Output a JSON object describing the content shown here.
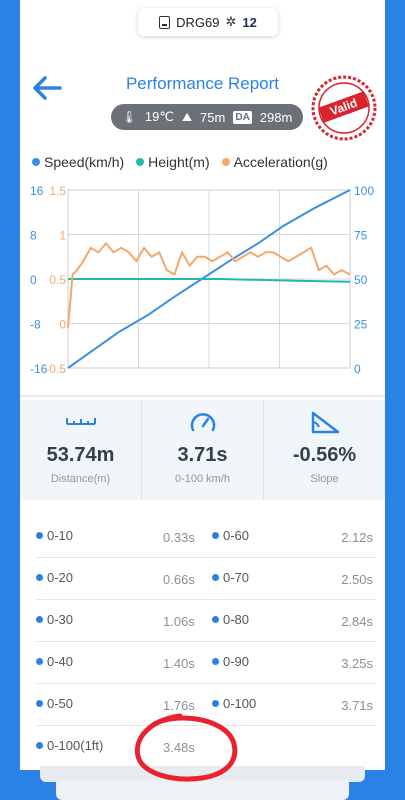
{
  "device": {
    "name": "DRG69",
    "satellites": "12"
  },
  "header": {
    "title": "Performance Report",
    "temperature": "19℃",
    "altitude": "75m",
    "da_label": "DA",
    "density_altitude": "298m",
    "stamp_text": "Valid"
  },
  "colors": {
    "primary": "#2b82e6",
    "speed": "#3b8fe3",
    "height": "#23b7b0",
    "acceleration": "#f5a76a",
    "annotation": "#e8232f"
  },
  "chart_data": {
    "type": "line",
    "series": [
      {
        "name": "Speed(km/h)",
        "axis": "right",
        "x": [
          0,
          0.33,
          0.66,
          1.06,
          1.4,
          1.76,
          2.12,
          2.5,
          2.84,
          3.25,
          3.71
        ],
        "values": [
          0,
          10,
          20,
          30,
          40,
          50,
          60,
          70,
          80,
          90,
          100
        ]
      },
      {
        "name": "Height(m)",
        "axis": "left",
        "x": [
          0,
          0.3,
          1,
          2,
          3,
          3.71
        ],
        "values": [
          0.5,
          0.5,
          0.5,
          0.5,
          0.48,
          0.47
        ]
      },
      {
        "name": "Acceleration(g)",
        "axis": "left-inner",
        "x": [
          0,
          0.06,
          0.12,
          0.2,
          0.3,
          0.4,
          0.5,
          0.6,
          0.7,
          0.8,
          0.9,
          1.0,
          1.1,
          1.2,
          1.3,
          1.4,
          1.5,
          1.6,
          1.7,
          1.8,
          1.9,
          2.0,
          2.1,
          2.2,
          2.3,
          2.4,
          2.5,
          2.6,
          2.7,
          2.8,
          2.9,
          3.0,
          3.1,
          3.2,
          3.3,
          3.4,
          3.5,
          3.6,
          3.71
        ],
        "values": [
          -0.05,
          0.55,
          0.6,
          0.7,
          0.85,
          0.8,
          0.9,
          0.8,
          0.85,
          0.8,
          0.7,
          0.85,
          0.75,
          0.8,
          0.6,
          0.55,
          0.8,
          0.65,
          0.75,
          0.75,
          0.7,
          0.75,
          0.8,
          0.7,
          0.75,
          0.8,
          0.75,
          0.8,
          0.8,
          0.75,
          0.7,
          0.75,
          0.8,
          0.85,
          0.6,
          0.65,
          0.55,
          0.6,
          0.55
        ]
      }
    ],
    "axes": {
      "left": {
        "ticks": [
          "16",
          "8",
          "0",
          "-8",
          "-16"
        ],
        "range": [
          -16,
          16
        ]
      },
      "left_inner": {
        "ticks": [
          "1.5",
          "1",
          "0.5",
          "0",
          "-0.5"
        ],
        "range": [
          -0.5,
          1.5
        ]
      },
      "right": {
        "ticks": [
          "100",
          "75",
          "50",
          "25",
          "0"
        ],
        "range": [
          0,
          100
        ]
      }
    },
    "xlim": [
      0,
      3.71
    ],
    "grid": true
  },
  "stats": [
    {
      "value": "53.74m",
      "label": "Distance(m)",
      "icon": "ruler-icon"
    },
    {
      "value": "3.71s",
      "label": "0-100 km/h",
      "icon": "gauge-icon"
    },
    {
      "value": "-0.56%",
      "label": "Slope",
      "icon": "slope-icon"
    }
  ],
  "splits": [
    {
      "l": "0-10",
      "lv": "0.33s",
      "r": "0-60",
      "rv": "2.12s"
    },
    {
      "l": "0-20",
      "lv": "0.66s",
      "r": "0-70",
      "rv": "2.50s"
    },
    {
      "l": "0-30",
      "lv": "1.06s",
      "r": "0-80",
      "rv": "2.84s"
    },
    {
      "l": "0-40",
      "lv": "1.40s",
      "r": "0-90",
      "rv": "3.25s"
    },
    {
      "l": "0-50",
      "lv": "1.76s",
      "r": "0-100",
      "rv": "3.71s"
    },
    {
      "l": "0-100(1ft)",
      "lv": "3.48s",
      "r": "",
      "rv": ""
    }
  ]
}
